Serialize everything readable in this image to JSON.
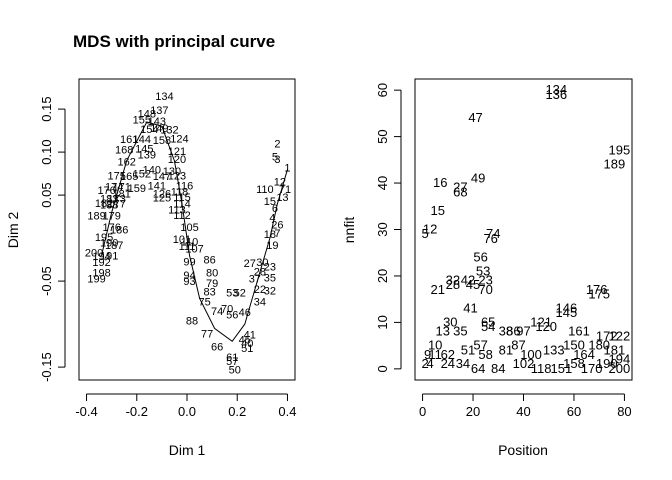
{
  "figure": {
    "background": "#ffffff",
    "ink": "#000000"
  },
  "chart_data": [
    {
      "type": "scatter",
      "title": "MDS with principal curve",
      "xlabel": "Dim 1",
      "ylabel": "Dim 2",
      "xlim": [
        -0.43,
        0.43
      ],
      "ylim": [
        -0.165,
        0.185
      ],
      "xticks": [
        -0.4,
        -0.2,
        0.0,
        0.2,
        0.4
      ],
      "xtick_labels": [
        "-0.4",
        "-0.2",
        "0.0",
        "0.2",
        "0.4"
      ],
      "yticks": [
        -0.15,
        -0.05,
        0.05,
        0.1,
        0.15
      ],
      "ytick_labels": [
        "-0.15",
        "-0.05",
        "0.05",
        "0.10",
        "0.15"
      ],
      "grid": false,
      "marker": "text labels",
      "curve": "principal curve (solid line)",
      "points": [
        {
          "label": "134",
          "x": -0.09,
          "y": 0.165
        },
        {
          "label": "137",
          "x": -0.11,
          "y": 0.149
        },
        {
          "label": "148",
          "x": -0.16,
          "y": 0.145
        },
        {
          "label": "155",
          "x": -0.18,
          "y": 0.138
        },
        {
          "label": "143",
          "x": -0.12,
          "y": 0.136
        },
        {
          "label": "154",
          "x": -0.15,
          "y": 0.127
        },
        {
          "label": "149",
          "x": -0.11,
          "y": 0.128
        },
        {
          "label": "132",
          "x": -0.07,
          "y": 0.126
        },
        {
          "label": "161",
          "x": -0.23,
          "y": 0.115
        },
        {
          "label": "144",
          "x": -0.18,
          "y": 0.115
        },
        {
          "label": "158",
          "x": -0.1,
          "y": 0.114
        },
        {
          "label": "124",
          "x": -0.03,
          "y": 0.116
        },
        {
          "label": "168",
          "x": -0.25,
          "y": 0.103
        },
        {
          "label": "145",
          "x": -0.17,
          "y": 0.104
        },
        {
          "label": "121",
          "x": -0.04,
          "y": 0.101
        },
        {
          "label": "162",
          "x": -0.24,
          "y": 0.089
        },
        {
          "label": "139",
          "x": -0.16,
          "y": 0.097
        },
        {
          "label": "120",
          "x": -0.04,
          "y": 0.092
        },
        {
          "label": "140",
          "x": -0.14,
          "y": 0.08
        },
        {
          "label": "130",
          "x": -0.06,
          "y": 0.078
        },
        {
          "label": "123",
          "x": -0.04,
          "y": 0.073
        },
        {
          "label": "175",
          "x": -0.28,
          "y": 0.073
        },
        {
          "label": "165",
          "x": -0.23,
          "y": 0.072
        },
        {
          "label": "152",
          "x": -0.18,
          "y": 0.075
        },
        {
          "label": "147",
          "x": -0.1,
          "y": 0.072
        },
        {
          "label": "1",
          "x": 0.4,
          "y": 0.082
        },
        {
          "label": "174",
          "x": -0.29,
          "y": 0.06
        },
        {
          "label": "171",
          "x": -0.26,
          "y": 0.06
        },
        {
          "label": "159",
          "x": -0.2,
          "y": 0.058
        },
        {
          "label": "141",
          "x": -0.12,
          "y": 0.061
        },
        {
          "label": "116",
          "x": -0.01,
          "y": 0.061
        },
        {
          "label": "176",
          "x": -0.32,
          "y": 0.056
        },
        {
          "label": "181",
          "x": -0.26,
          "y": 0.052
        },
        {
          "label": "126",
          "x": -0.1,
          "y": 0.052
        },
        {
          "label": "118",
          "x": -0.03,
          "y": 0.054
        },
        {
          "label": "183",
          "x": -0.31,
          "y": 0.046
        },
        {
          "label": "173",
          "x": -0.28,
          "y": 0.046
        },
        {
          "label": "125",
          "x": -0.1,
          "y": 0.047
        },
        {
          "label": "115",
          "x": -0.02,
          "y": 0.048
        },
        {
          "label": "182",
          "x": -0.33,
          "y": 0.041
        },
        {
          "label": "188",
          "x": -0.31,
          "y": 0.039
        },
        {
          "label": "177",
          "x": -0.28,
          "y": 0.04
        },
        {
          "label": "114",
          "x": -0.02,
          "y": 0.04
        },
        {
          "label": "189",
          "x": -0.36,
          "y": 0.026
        },
        {
          "label": "179",
          "x": -0.3,
          "y": 0.026
        },
        {
          "label": "112",
          "x": -0.02,
          "y": 0.027
        },
        {
          "label": "113",
          "x": -0.04,
          "y": 0.033
        },
        {
          "label": "176",
          "x": -0.3,
          "y": 0.013
        },
        {
          "label": "186",
          "x": -0.27,
          "y": 0.01
        },
        {
          "label": "105",
          "x": 0.01,
          "y": 0.013
        },
        {
          "label": "195",
          "x": -0.33,
          "y": 0.001
        },
        {
          "label": "190",
          "x": -0.31,
          "y": -0.005
        },
        {
          "label": "187",
          "x": -0.29,
          "y": -0.008
        },
        {
          "label": "101",
          "x": -0.02,
          "y": -0.001
        },
        {
          "label": "110",
          "x": 0.01,
          "y": -0.004
        },
        {
          "label": "107",
          "x": 0.03,
          "y": -0.012
        },
        {
          "label": "111",
          "x": 0.0,
          "y": -0.009
        },
        {
          "label": "200",
          "x": -0.37,
          "y": -0.017
        },
        {
          "label": "194",
          "x": -0.34,
          "y": -0.021
        },
        {
          "label": "191",
          "x": -0.31,
          "y": -0.02
        },
        {
          "label": "192",
          "x": -0.34,
          "y": -0.028
        },
        {
          "label": "198",
          "x": -0.34,
          "y": -0.04
        },
        {
          "label": "199",
          "x": -0.36,
          "y": -0.047
        },
        {
          "label": "99",
          "x": 0.01,
          "y": -0.027
        },
        {
          "label": "86",
          "x": 0.09,
          "y": -0.025
        },
        {
          "label": "94",
          "x": 0.01,
          "y": -0.043
        },
        {
          "label": "80",
          "x": 0.1,
          "y": -0.04
        },
        {
          "label": "93",
          "x": 0.01,
          "y": -0.05
        },
        {
          "label": "79",
          "x": 0.1,
          "y": -0.052
        },
        {
          "label": "83",
          "x": 0.09,
          "y": -0.062
        },
        {
          "label": "53",
          "x": 0.18,
          "y": -0.063
        },
        {
          "label": "52",
          "x": 0.21,
          "y": -0.063
        },
        {
          "label": "75",
          "x": 0.07,
          "y": -0.074
        },
        {
          "label": "74",
          "x": 0.12,
          "y": -0.085
        },
        {
          "label": "70",
          "x": 0.16,
          "y": -0.082
        },
        {
          "label": "88",
          "x": 0.02,
          "y": -0.096
        },
        {
          "label": "56",
          "x": 0.18,
          "y": -0.089
        },
        {
          "label": "46",
          "x": 0.23,
          "y": -0.086
        },
        {
          "label": "34",
          "x": 0.29,
          "y": -0.074
        },
        {
          "label": "37",
          "x": 0.27,
          "y": -0.047
        },
        {
          "label": "35",
          "x": 0.33,
          "y": -0.046
        },
        {
          "label": "22",
          "x": 0.29,
          "y": -0.059
        },
        {
          "label": "32",
          "x": 0.33,
          "y": -0.061
        },
        {
          "label": "27",
          "x": 0.25,
          "y": -0.029
        },
        {
          "label": "30",
          "x": 0.3,
          "y": -0.028
        },
        {
          "label": "23",
          "x": 0.33,
          "y": -0.033
        },
        {
          "label": "28",
          "x": 0.29,
          "y": -0.039
        },
        {
          "label": "45",
          "x": 0.23,
          "y": -0.118
        },
        {
          "label": "41",
          "x": 0.25,
          "y": -0.112
        },
        {
          "label": "40",
          "x": 0.24,
          "y": -0.122
        },
        {
          "label": "77",
          "x": 0.08,
          "y": -0.111
        },
        {
          "label": "66",
          "x": 0.12,
          "y": -0.126
        },
        {
          "label": "61",
          "x": 0.18,
          "y": -0.138
        },
        {
          "label": "57",
          "x": 0.18,
          "y": -0.143
        },
        {
          "label": "50",
          "x": 0.19,
          "y": -0.153
        },
        {
          "label": "51",
          "x": 0.24,
          "y": -0.128
        },
        {
          "label": "19",
          "x": 0.34,
          "y": -0.008
        },
        {
          "label": "18",
          "x": 0.33,
          "y": 0.005
        },
        {
          "label": "7",
          "x": 0.36,
          "y": 0.006
        },
        {
          "label": "4",
          "x": 0.34,
          "y": 0.024
        },
        {
          "label": "26",
          "x": 0.36,
          "y": 0.016
        },
        {
          "label": "6",
          "x": 0.35,
          "y": 0.035
        },
        {
          "label": "15",
          "x": 0.33,
          "y": 0.043
        },
        {
          "label": "13",
          "x": 0.38,
          "y": 0.048
        },
        {
          "label": "110",
          "x": 0.31,
          "y": 0.057
        },
        {
          "label": "12",
          "x": 0.37,
          "y": 0.066
        },
        {
          "label": "71",
          "x": 0.39,
          "y": 0.057
        },
        {
          "label": "2",
          "x": 0.36,
          "y": 0.11
        },
        {
          "label": "5",
          "x": 0.35,
          "y": 0.095
        },
        {
          "label": "3",
          "x": 0.36,
          "y": 0.092
        }
      ]
    },
    {
      "type": "scatter",
      "title": "",
      "xlabel": "Position",
      "ylabel": "nnfit",
      "xlim": [
        -3,
        83
      ],
      "ylim": [
        -2.4,
        62.4
      ],
      "xticks": [
        0,
        20,
        40,
        60,
        80
      ],
      "xtick_labels": [
        "0",
        "20",
        "40",
        "60",
        "80"
      ],
      "yticks": [
        0,
        10,
        20,
        30,
        40,
        50,
        60
      ],
      "ytick_labels": [
        "0",
        "10",
        "20",
        "30",
        "40",
        "50",
        "60"
      ],
      "grid": false,
      "marker": "text labels",
      "points": [
        {
          "label": "134",
          "x": 53,
          "y": 60
        },
        {
          "label": "136",
          "x": 53,
          "y": 59
        },
        {
          "label": "47",
          "x": 21,
          "y": 54
        },
        {
          "label": "195",
          "x": 78,
          "y": 47
        },
        {
          "label": "189",
          "x": 76,
          "y": 44
        },
        {
          "label": "49",
          "x": 22,
          "y": 41
        },
        {
          "label": "16",
          "x": 7,
          "y": 40
        },
        {
          "label": "27",
          "x": 15,
          "y": 39
        },
        {
          "label": "68",
          "x": 15,
          "y": 38
        },
        {
          "label": "15",
          "x": 6,
          "y": 34
        },
        {
          "label": "12",
          "x": 3,
          "y": 30
        },
        {
          "label": "5",
          "x": 1,
          "y": 29
        },
        {
          "label": "74",
          "x": 28,
          "y": 29
        },
        {
          "label": "76",
          "x": 27,
          "y": 28
        },
        {
          "label": "56",
          "x": 23,
          "y": 24
        },
        {
          "label": "53",
          "x": 24,
          "y": 21
        },
        {
          "label": "32",
          "x": 12,
          "y": 19
        },
        {
          "label": "42",
          "x": 18,
          "y": 19
        },
        {
          "label": "23",
          "x": 25,
          "y": 19
        },
        {
          "label": "21",
          "x": 6,
          "y": 17
        },
        {
          "label": "28",
          "x": 12,
          "y": 18
        },
        {
          "label": "45",
          "x": 20,
          "y": 18
        },
        {
          "label": "70",
          "x": 25,
          "y": 17
        },
        {
          "label": "176",
          "x": 69,
          "y": 17
        },
        {
          "label": "175",
          "x": 70,
          "y": 16
        },
        {
          "label": "41",
          "x": 19,
          "y": 13
        },
        {
          "label": "146",
          "x": 57,
          "y": 13
        },
        {
          "label": "145",
          "x": 57,
          "y": 12
        },
        {
          "label": "30",
          "x": 11,
          "y": 10
        },
        {
          "label": "65",
          "x": 26,
          "y": 10
        },
        {
          "label": "54",
          "x": 26,
          "y": 9
        },
        {
          "label": "121",
          "x": 47,
          "y": 10
        },
        {
          "label": "120",
          "x": 49,
          "y": 9
        },
        {
          "label": "13",
          "x": 8,
          "y": 8
        },
        {
          "label": "35",
          "x": 15,
          "y": 8
        },
        {
          "label": "38",
          "x": 33,
          "y": 8
        },
        {
          "label": "86",
          "x": 36,
          "y": 8
        },
        {
          "label": "97",
          "x": 40,
          "y": 8
        },
        {
          "label": "161",
          "x": 62,
          "y": 8
        },
        {
          "label": "122",
          "x": 78,
          "y": 7
        },
        {
          "label": "172",
          "x": 73,
          "y": 7
        },
        {
          "label": "10",
          "x": 5,
          "y": 5
        },
        {
          "label": "51",
          "x": 18,
          "y": 4
        },
        {
          "label": "57",
          "x": 23,
          "y": 5
        },
        {
          "label": "81",
          "x": 33,
          "y": 4
        },
        {
          "label": "87",
          "x": 38,
          "y": 5
        },
        {
          "label": "150",
          "x": 60,
          "y": 5
        },
        {
          "label": "180",
          "x": 70,
          "y": 5
        },
        {
          "label": "181",
          "x": 76,
          "y": 4
        },
        {
          "label": "9",
          "x": 2,
          "y": 3
        },
        {
          "label": "11",
          "x": 5,
          "y": 3
        },
        {
          "label": "62",
          "x": 10,
          "y": 3
        },
        {
          "label": "58",
          "x": 25,
          "y": 3
        },
        {
          "label": "100",
          "x": 43,
          "y": 3
        },
        {
          "label": "133",
          "x": 52,
          "y": 4
        },
        {
          "label": "164",
          "x": 64,
          "y": 3
        },
        {
          "label": "194",
          "x": 78,
          "y": 2
        },
        {
          "label": "2",
          "x": 1,
          "y": 1
        },
        {
          "label": "4",
          "x": 3,
          "y": 1
        },
        {
          "label": "24",
          "x": 10,
          "y": 1
        },
        {
          "label": "34",
          "x": 16,
          "y": 1
        },
        {
          "label": "64",
          "x": 22,
          "y": 0
        },
        {
          "label": "84",
          "x": 30,
          "y": 0
        },
        {
          "label": "102",
          "x": 40,
          "y": 1
        },
        {
          "label": "118",
          "x": 47,
          "y": 0
        },
        {
          "label": "151",
          "x": 55,
          "y": 0
        },
        {
          "label": "158",
          "x": 60,
          "y": 1
        },
        {
          "label": "170",
          "x": 67,
          "y": 0
        },
        {
          "label": "190",
          "x": 73,
          "y": 1
        },
        {
          "label": "200",
          "x": 78,
          "y": 0
        }
      ]
    }
  ]
}
